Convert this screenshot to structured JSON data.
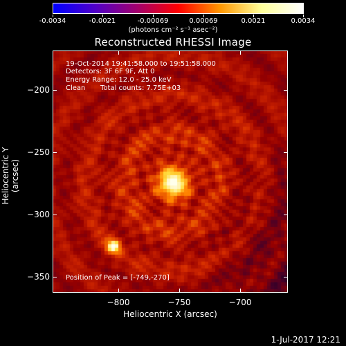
{
  "colorbar": {
    "tick_labels": [
      "-0.0034",
      "-0.0021",
      "-0.00069",
      "0.00069",
      "0.0021",
      "0.0034"
    ],
    "range": [
      -0.0034,
      0.0034
    ],
    "units": "(photons cm⁻² s⁻¹ asec⁻²)",
    "colors": [
      "#0000ff",
      "#5000c8",
      "#a0006e",
      "#ff0000",
      "#ff9600",
      "#ffff9a",
      "#ffffff"
    ]
  },
  "chart_data": {
    "type": "heatmap",
    "title": "Reconstructed RHESSI Image",
    "xlabel": "Heliocentric X (arcsec)",
    "ylabel": "Heliocentric Y (arcsec)",
    "xlim": [
      -845,
      -655
    ],
    "ylim": [
      -358,
      -167
    ],
    "xticks": [
      -800,
      -750,
      -700
    ],
    "xtick_labels": [
      "−800",
      "−750",
      "−700"
    ],
    "yticks": [
      -200,
      -250,
      -300,
      -350
    ],
    "ytick_labels": [
      "−200",
      "−250",
      "−300",
      "−350"
    ],
    "peak": {
      "x": -749,
      "y": -270,
      "value": 0.0034
    },
    "secondary_source": {
      "x": -797,
      "y": -320
    },
    "annotations": {
      "time_range": "19-Oct-2014 19:41:58.000 to 19:51:58.000",
      "detectors": "Detectors: 3F 6F 9F, Att 0",
      "energy_range": "Energy Range: 12.0 - 25.0 keV",
      "method": "Clean",
      "total_counts": "Total counts: 7.75E+03",
      "peak_position": "Position of Peak = [-749,-270]"
    }
  },
  "footer": {
    "timestamp": "1-Jul-2017 12:21"
  }
}
